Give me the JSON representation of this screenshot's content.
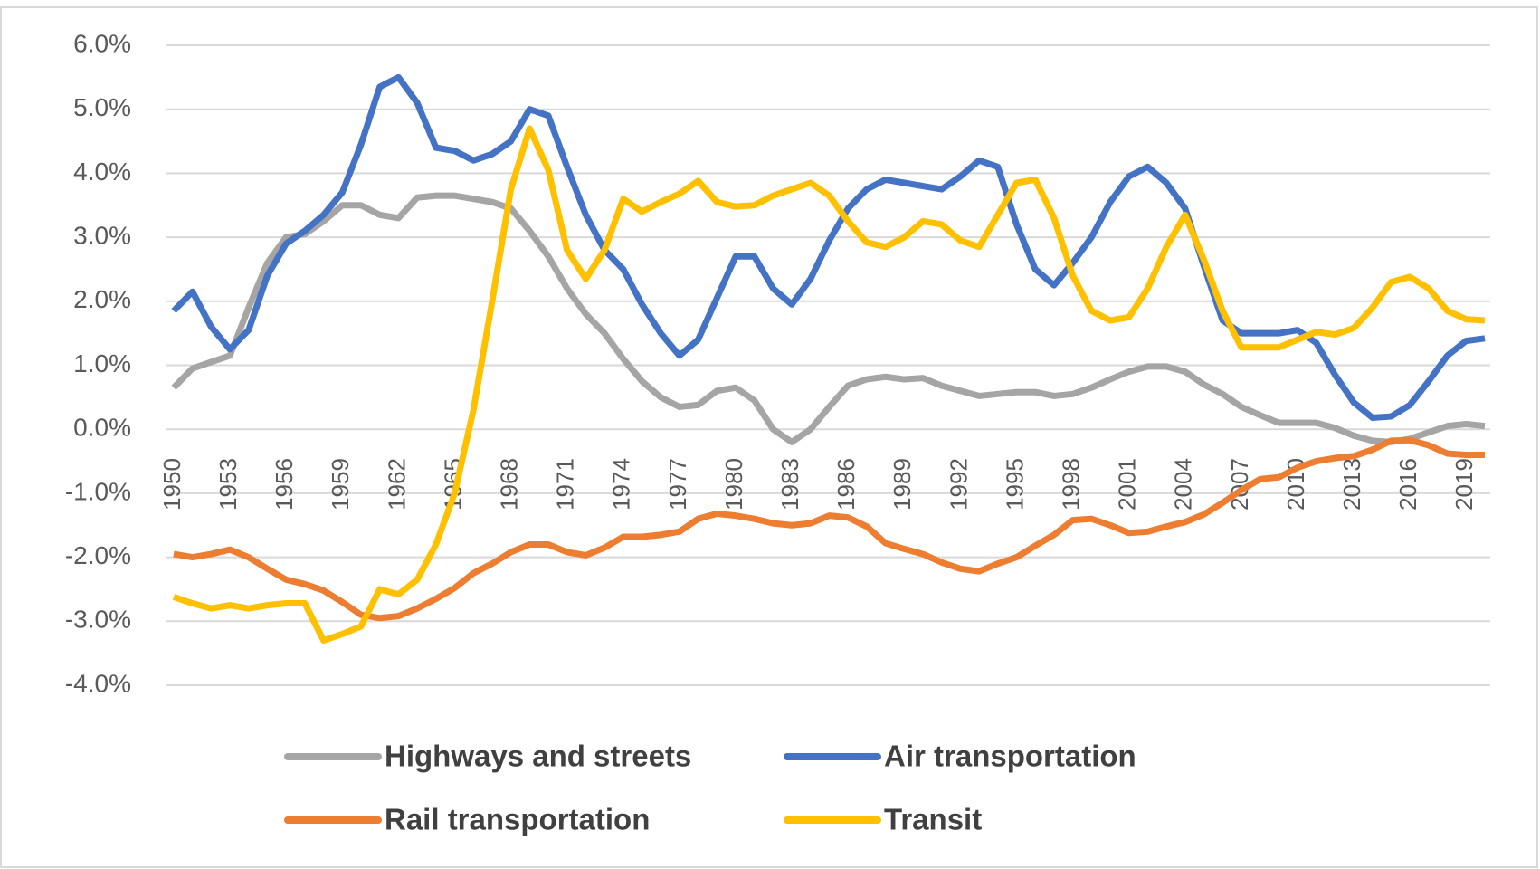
{
  "chart_data": {
    "type": "line",
    "x": [
      1950,
      1951,
      1952,
      1953,
      1954,
      1955,
      1956,
      1957,
      1958,
      1959,
      1960,
      1961,
      1962,
      1963,
      1964,
      1965,
      1966,
      1967,
      1968,
      1969,
      1970,
      1971,
      1972,
      1973,
      1974,
      1975,
      1976,
      1977,
      1978,
      1979,
      1980,
      1981,
      1982,
      1983,
      1984,
      1985,
      1986,
      1987,
      1988,
      1989,
      1990,
      1991,
      1992,
      1993,
      1994,
      1995,
      1996,
      1997,
      1998,
      1999,
      2000,
      2001,
      2002,
      2003,
      2004,
      2005,
      2006,
      2007,
      2008,
      2009,
      2010,
      2011,
      2012,
      2013,
      2014,
      2015,
      2016,
      2017,
      2018,
      2019,
      2020
    ],
    "xlim": [
      1950,
      2020
    ],
    "xticks": [
      1950,
      1953,
      1956,
      1959,
      1962,
      1965,
      1968,
      1971,
      1974,
      1977,
      1980,
      1983,
      1986,
      1989,
      1992,
      1995,
      1998,
      2001,
      2004,
      2007,
      2010,
      2013,
      2016,
      2019
    ],
    "ylim": [
      -4,
      6
    ],
    "yticks": [
      {
        "value": -4,
        "label": "-4.0%"
      },
      {
        "value": -3,
        "label": "-3.0%"
      },
      {
        "value": -2,
        "label": "-2.0%"
      },
      {
        "value": -1,
        "label": "-1.0%"
      },
      {
        "value": 0,
        "label": "0.0%"
      },
      {
        "value": 1,
        "label": "1.0%"
      },
      {
        "value": 2,
        "label": "2.0%"
      },
      {
        "value": 3,
        "label": "3.0%"
      },
      {
        "value": 4,
        "label": "4.0%"
      },
      {
        "value": 5,
        "label": "5.0%"
      },
      {
        "value": 6,
        "label": "6.0%"
      }
    ],
    "grid": true,
    "legend": "bottom",
    "series": [
      {
        "name": "Highways and streets",
        "color": "#a5a5a5",
        "values": [
          0.65,
          0.95,
          1.05,
          1.15,
          1.9,
          2.6,
          3.0,
          3.05,
          3.25,
          3.5,
          3.5,
          3.35,
          3.3,
          3.62,
          3.65,
          3.65,
          3.6,
          3.55,
          3.45,
          3.1,
          2.7,
          2.2,
          1.8,
          1.5,
          1.1,
          0.75,
          0.5,
          0.35,
          0.38,
          0.6,
          0.65,
          0.45,
          0.0,
          -0.2,
          0.0,
          0.35,
          0.68,
          0.78,
          0.82,
          0.78,
          0.8,
          0.68,
          0.6,
          0.52,
          0.55,
          0.58,
          0.58,
          0.52,
          0.55,
          0.65,
          0.78,
          0.9,
          0.98,
          0.98,
          0.9,
          0.7,
          0.55,
          0.35,
          0.22,
          0.1,
          0.1,
          0.1,
          0.02,
          -0.1,
          -0.18,
          -0.2,
          -0.15,
          -0.05,
          0.05,
          0.08,
          0.05
        ]
      },
      {
        "name": "Air transportation",
        "color": "#4472c4",
        "values": [
          1.85,
          2.15,
          1.6,
          1.25,
          1.55,
          2.4,
          2.9,
          3.1,
          3.35,
          3.7,
          4.45,
          5.35,
          5.5,
          5.1,
          4.4,
          4.35,
          4.2,
          4.3,
          4.5,
          5.0,
          4.9,
          4.1,
          3.35,
          2.8,
          2.5,
          1.95,
          1.5,
          1.15,
          1.4,
          2.05,
          2.7,
          2.7,
          2.2,
          1.95,
          2.35,
          2.95,
          3.45,
          3.75,
          3.9,
          3.85,
          3.8,
          3.75,
          3.95,
          4.2,
          4.1,
          3.2,
          2.5,
          2.25,
          2.6,
          3.0,
          3.55,
          3.95,
          4.1,
          3.85,
          3.45,
          2.55,
          1.7,
          1.5,
          1.5,
          1.5,
          1.55,
          1.35,
          0.85,
          0.42,
          0.18,
          0.2,
          0.38,
          0.75,
          1.15,
          1.38,
          1.42
        ]
      },
      {
        "name": "Rail transportation",
        "color": "#ed7d31",
        "values": [
          -1.95,
          -2.0,
          -1.95,
          -1.88,
          -2.0,
          -2.18,
          -2.35,
          -2.42,
          -2.52,
          -2.7,
          -2.9,
          -2.95,
          -2.92,
          -2.8,
          -2.65,
          -2.48,
          -2.25,
          -2.1,
          -1.92,
          -1.8,
          -1.8,
          -1.92,
          -1.97,
          -1.85,
          -1.68,
          -1.68,
          -1.65,
          -1.6,
          -1.4,
          -1.32,
          -1.35,
          -1.4,
          -1.47,
          -1.5,
          -1.47,
          -1.35,
          -1.38,
          -1.52,
          -1.78,
          -1.87,
          -1.95,
          -2.08,
          -2.18,
          -2.22,
          -2.1,
          -2.0,
          -1.82,
          -1.65,
          -1.42,
          -1.4,
          -1.5,
          -1.62,
          -1.6,
          -1.52,
          -1.45,
          -1.33,
          -1.15,
          -0.95,
          -0.78,
          -0.75,
          -0.6,
          -0.5,
          -0.45,
          -0.42,
          -0.32,
          -0.18,
          -0.17,
          -0.25,
          -0.38,
          -0.4,
          -0.4
        ]
      },
      {
        "name": "Transit",
        "color": "#ffc000",
        "values": [
          -2.62,
          -2.72,
          -2.8,
          -2.75,
          -2.8,
          -2.75,
          -2.72,
          -2.72,
          -3.3,
          -3.2,
          -3.08,
          -2.5,
          -2.58,
          -2.35,
          -1.8,
          -1.0,
          0.3,
          2.0,
          3.75,
          4.7,
          4.05,
          2.8,
          2.35,
          2.8,
          3.6,
          3.4,
          3.55,
          3.68,
          3.88,
          3.55,
          3.48,
          3.5,
          3.65,
          3.75,
          3.85,
          3.65,
          3.25,
          2.92,
          2.85,
          3.0,
          3.25,
          3.2,
          2.95,
          2.85,
          3.35,
          3.85,
          3.9,
          3.3,
          2.4,
          1.85,
          1.7,
          1.75,
          2.2,
          2.85,
          3.35,
          2.65,
          1.85,
          1.28,
          1.28,
          1.28,
          1.4,
          1.52,
          1.48,
          1.58,
          1.9,
          2.3,
          2.38,
          2.2,
          1.85,
          1.72,
          1.7
        ]
      }
    ]
  }
}
